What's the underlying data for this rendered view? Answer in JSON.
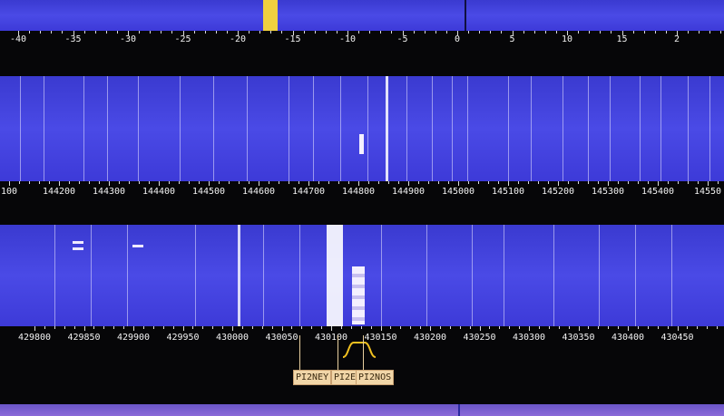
{
  "top_scale": {
    "labels": [
      "-40",
      "-35",
      "-30",
      "-25",
      "-20",
      "-15",
      "-10",
      "-5",
      "0",
      "5",
      "10",
      "15",
      "2"
    ]
  },
  "band_2m": {
    "labels": [
      "100",
      "144200",
      "144300",
      "144400",
      "144500",
      "144600",
      "144700",
      "144800",
      "144900",
      "145000",
      "145100",
      "145200",
      "145300",
      "145400",
      "14550"
    ]
  },
  "band_70cm": {
    "labels": [
      "429800",
      "429850",
      "429900",
      "429950",
      "430000",
      "430050",
      "430100",
      "430150",
      "430200",
      "430250",
      "430300",
      "430350",
      "430400",
      "430450"
    ],
    "markers": [
      {
        "label": "PI2NEY"
      },
      {
        "label": "PI2E"
      },
      {
        "label": "PI2NOS"
      }
    ]
  },
  "colors": {
    "waterfall": "#4545e0",
    "scale_bg": "#060608",
    "marker_bg": "#f1d6a8",
    "filter": "#f0c020",
    "pointer": "#f0d040"
  }
}
